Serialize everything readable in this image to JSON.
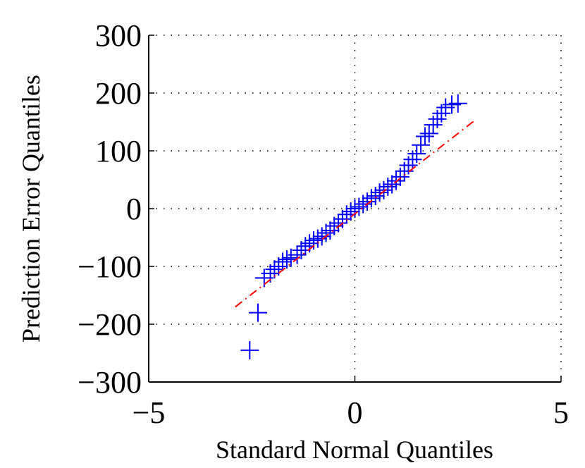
{
  "chart_data": {
    "type": "scatter",
    "xlabel": "Standard Normal Quantiles",
    "ylabel": "Prediction Error Quantiles",
    "xlim": [
      -5,
      5
    ],
    "ylim": [
      -300,
      300
    ],
    "xticks": [
      {
        "value": -5,
        "label": "−5"
      },
      0,
      5
    ],
    "yticks": [
      {
        "value": -300,
        "label": "−300"
      },
      {
        "value": -200,
        "label": "−200"
      },
      {
        "value": -100,
        "label": "−100"
      },
      0,
      100,
      200,
      300
    ],
    "grid": true,
    "series": [
      {
        "type": "scatter",
        "color": "#0000ff",
        "x": [
          -2.55,
          -2.35,
          -2.2,
          -2.05,
          -1.95,
          -1.85,
          -1.75,
          -1.65,
          -1.55,
          -1.4,
          -1.3,
          -1.2,
          -1.1,
          -1.0,
          -0.9,
          -0.8,
          -0.7,
          -0.6,
          -0.5,
          -0.4,
          -0.3,
          -0.2,
          -0.1,
          0,
          0.1,
          0.2,
          0.3,
          0.4,
          0.5,
          0.6,
          0.7,
          0.8,
          0.9,
          1.0,
          1.1,
          1.2,
          1.3,
          1.4,
          1.5,
          1.6,
          1.7,
          1.8,
          1.9,
          2.0,
          2.1,
          2.2,
          2.35,
          2.5
        ],
        "y": [
          -245,
          -180,
          -120,
          -112,
          -105,
          -100,
          -92,
          -88,
          -85,
          -80,
          -72,
          -65,
          -60,
          -55,
          -52,
          -48,
          -42,
          -38,
          -30,
          -25,
          -18,
          -10,
          -5,
          0,
          3,
          8,
          12,
          18,
          22,
          28,
          32,
          38,
          42,
          48,
          55,
          65,
          75,
          85,
          95,
          110,
          125,
          130,
          145,
          155,
          165,
          175,
          180,
          182
        ]
      },
      {
        "type": "line",
        "color": "#ff0000",
        "x": [
          -2.9,
          2.95
        ],
        "y": [
          -170,
          155
        ]
      }
    ]
  }
}
